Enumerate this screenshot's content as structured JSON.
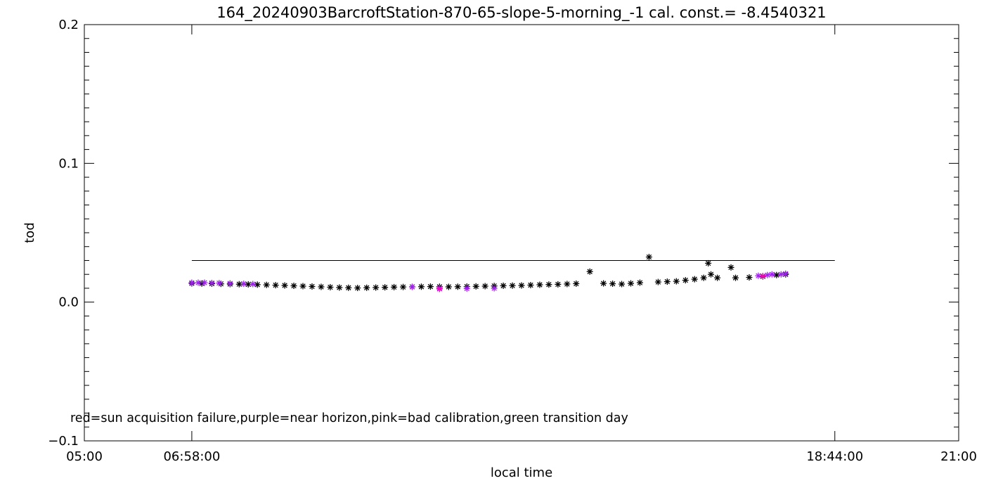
{
  "chart_data": {
    "type": "scatter",
    "title": "164_20240903BarcroftStation-870-65-slope-5-morning_-1 cal. const.= -8.4540321",
    "xlabel": "local time",
    "ylabel": "tod",
    "xlim": [
      "05:00",
      "21:00"
    ],
    "ylim": [
      -0.1,
      0.2
    ],
    "x_ticks": [
      "05:00",
      "06:58:00",
      "18:44:00",
      "21:00"
    ],
    "y_ticks": [
      "-0.1",
      "0.0",
      "0.1",
      "0.2"
    ],
    "reference_line": {
      "y": 0.03,
      "x_start": "06:58:00",
      "x_end": "18:44:00"
    },
    "legend_note": "red=sun acquisition failure,purple=near horizon,pink=bad calibration,green transition day",
    "colors": {
      "normal": "#000000",
      "near_horizon": "#a020f0",
      "bad_calibration": "#ff00c0"
    },
    "series": [
      {
        "color": "#000000",
        "points": [
          [
            "06:58",
            0.0135
          ],
          [
            "07:20",
            0.0133
          ],
          [
            "07:40",
            0.013
          ],
          [
            "08:00",
            0.0128
          ],
          [
            "08:20",
            0.0124
          ],
          [
            "08:40",
            0.012
          ],
          [
            "09:00",
            0.0115
          ],
          [
            "09:20",
            0.011
          ],
          [
            "09:40",
            0.0105
          ],
          [
            "10:00",
            0.0102
          ],
          [
            "10:20",
            0.0105
          ],
          [
            "10:40",
            0.0108
          ],
          [
            "11:00",
            0.011
          ],
          [
            "11:20",
            0.0112
          ],
          [
            "11:40",
            0.011
          ],
          [
            "12:00",
            0.0112
          ],
          [
            "12:20",
            0.0115
          ],
          [
            "12:40",
            0.0118
          ],
          [
            "13:00",
            0.012
          ],
          [
            "13:20",
            0.0125
          ],
          [
            "13:40",
            0.0128
          ],
          [
            "14:00",
            0.0133
          ],
          [
            "14:15",
            0.022
          ],
          [
            "14:30",
            0.0135
          ],
          [
            "14:50",
            0.013
          ],
          [
            "15:10",
            0.014
          ],
          [
            "15:20",
            0.0325
          ],
          [
            "15:30",
            0.0145
          ],
          [
            "15:50",
            0.015
          ],
          [
            "16:10",
            0.0165
          ],
          [
            "16:20",
            0.0175
          ],
          [
            "16:25",
            0.028
          ],
          [
            "16:28",
            0.02
          ],
          [
            "16:35",
            0.0175
          ],
          [
            "16:50",
            0.025
          ],
          [
            "16:55",
            0.0175
          ],
          [
            "17:10",
            0.0178
          ],
          [
            "17:25",
            0.0185
          ],
          [
            "17:40",
            0.0195
          ],
          [
            "17:50",
            0.02
          ]
        ]
      },
      {
        "color": "#a020f0",
        "points": [
          [
            "06:58",
            0.014
          ],
          [
            "07:05",
            0.014
          ],
          [
            "07:12",
            0.014
          ],
          [
            "07:20",
            0.0138
          ],
          [
            "07:28",
            0.0137
          ],
          [
            "07:40",
            0.0135
          ],
          [
            "07:55",
            0.0132
          ],
          [
            "08:05",
            0.013
          ],
          [
            "11:00",
            0.011
          ],
          [
            "11:30",
            0.01
          ],
          [
            "12:00",
            0.0098
          ],
          [
            "12:30",
            0.01
          ],
          [
            "17:20",
            0.019
          ],
          [
            "17:30",
            0.0195
          ],
          [
            "17:35",
            0.02
          ],
          [
            "17:45",
            0.02
          ],
          [
            "17:50",
            0.0205
          ]
        ]
      },
      {
        "color": "#ff00c0",
        "points": [
          [
            "11:30",
            0.0095
          ],
          [
            "17:25",
            0.0188
          ]
        ]
      }
    ]
  }
}
